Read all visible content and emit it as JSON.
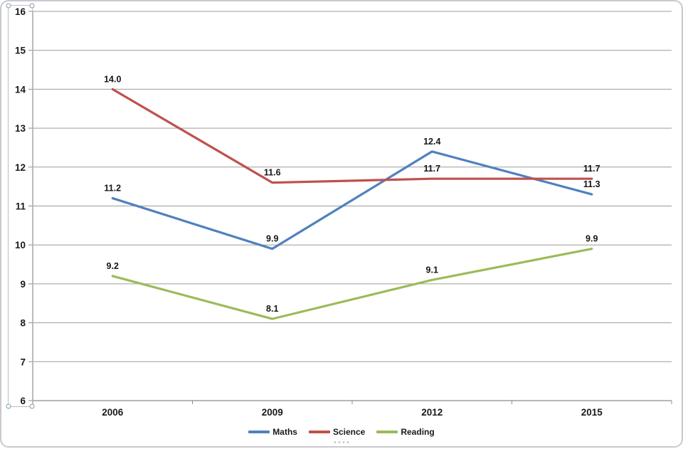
{
  "chart_data": {
    "type": "line",
    "title": "",
    "categories": [
      "2006",
      "2009",
      "2012",
      "2015"
    ],
    "series": [
      {
        "name": "Maths",
        "color": "#4F81BD",
        "values": [
          11.2,
          9.9,
          12.4,
          11.3
        ]
      },
      {
        "name": "Science",
        "color": "#C0504D",
        "values": [
          14.0,
          11.6,
          11.7,
          11.7
        ]
      },
      {
        "name": "Reading",
        "color": "#9BBB59",
        "values": [
          9.2,
          8.1,
          9.1,
          9.9
        ]
      }
    ],
    "xlabel": "",
    "ylabel": "",
    "ylim": [
      6,
      16
    ],
    "y_ticks": [
      6,
      7,
      8,
      9,
      10,
      11,
      12,
      13,
      14,
      15,
      16
    ],
    "grid": true,
    "legend_position": "bottom",
    "data_labels_visible": true,
    "data_label_decimals": 1
  },
  "style": {
    "gridline_color": "#9c9c9c",
    "axis_color": "#8c8c8c",
    "tick_label_color": "#1a1a1a",
    "data_label_color": "#151515",
    "frame_border_color": "#c9c9cf",
    "selection_handle_border": "#7f9db9"
  },
  "selection": {
    "target": "value-axis"
  }
}
